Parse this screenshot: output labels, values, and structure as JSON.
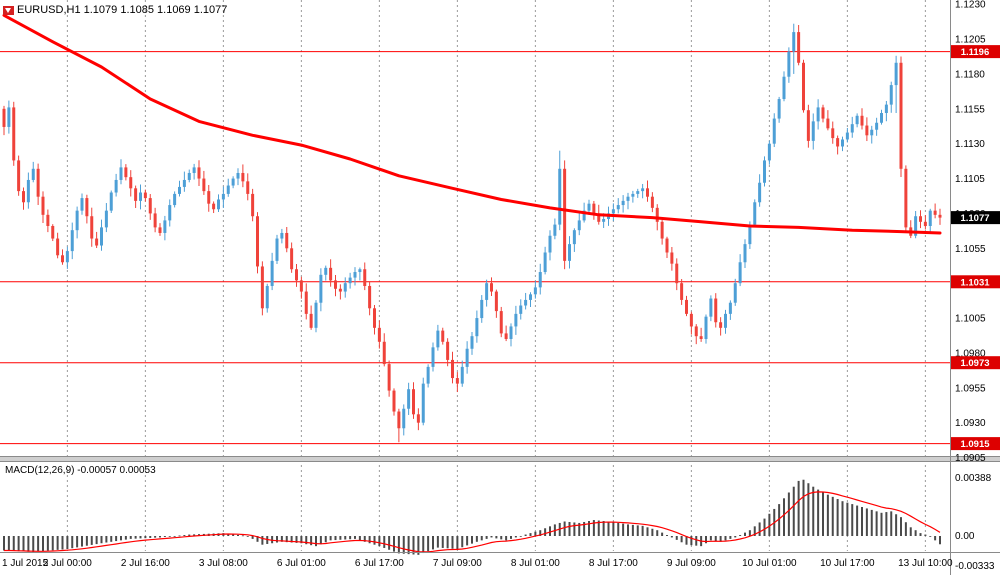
{
  "header": {
    "symbol_line": "EURUSD,H1 1.1079 1.1085 1.1069 1.1077"
  },
  "macd_panel": {
    "label": "MACD(12,26,9) -0.00057 0.00053",
    "axis_labels": [
      "0.00388",
      "0.00",
      "-0.00333"
    ]
  },
  "price_axis_labels": [
    "1.1230",
    "1.1205",
    "1.1180",
    "1.1155",
    "1.1130",
    "1.1105",
    "1.1080",
    "1.1055",
    "1.1030",
    "1.1005",
    "1.0980",
    "1.0955",
    "1.0930",
    "1.0905"
  ],
  "time_axis": [
    {
      "label": "1 Jul 2015",
      "i": 1,
      "grid": false
    },
    {
      "label": "2 Jul 00:00",
      "i": 13,
      "grid": true
    },
    {
      "label": "2 Jul 16:00",
      "i": 29,
      "grid": true
    },
    {
      "label": "3 Jul 08:00",
      "i": 45,
      "grid": true
    },
    {
      "label": "6 Jul 01:00",
      "i": 61,
      "grid": true
    },
    {
      "label": "6 Jul 17:00",
      "i": 77,
      "grid": true
    },
    {
      "label": "7 Jul 09:00",
      "i": 93,
      "grid": true
    },
    {
      "label": "8 Jul 01:00",
      "i": 109,
      "grid": true
    },
    {
      "label": "8 Jul 17:00",
      "i": 125,
      "grid": true
    },
    {
      "label": "9 Jul 09:00",
      "i": 141,
      "grid": true
    },
    {
      "label": "10 Jul 01:00",
      "i": 157,
      "grid": true
    },
    {
      "label": "10 Jul 17:00",
      "i": 173,
      "grid": true
    },
    {
      "label": "13 Jul 10:00",
      "i": 189,
      "grid": true
    }
  ],
  "levels": {
    "horizontal_lines": [
      {
        "label": "1.1196",
        "value": 1.1196
      },
      {
        "label": "1.1031",
        "value": 1.1031
      },
      {
        "label": "1.0973",
        "value": 1.0973
      },
      {
        "label": "1.0915",
        "value": 1.0915
      }
    ],
    "current_price": {
      "label": "1.1077",
      "value": 1.1077
    }
  },
  "colors": {
    "background": "#ffffff",
    "bull_candle": "#4d9fd6",
    "bear_candle": "#ef423a",
    "ma_line": "#ff0000",
    "hline": "#ff0000",
    "hline_tag_bg": "#dd0000",
    "current_tag_bg": "#000000",
    "tag_text": "#ffffff",
    "grid": "#9b9b9b",
    "macd_histogram": "#4a4a4a",
    "macd_signal": "#ff0000",
    "axis_text": "#000000",
    "divider": "#cfcfcf",
    "frame": "#8a8a8a"
  },
  "chart_data": {
    "type": "candlestick",
    "symbol": "EURUSD",
    "timeframe": "H1",
    "title": "EURUSD,H1",
    "last_ohlc": {
      "open": 1.1079,
      "high": 1.1085,
      "low": 1.1069,
      "close": 1.1077
    },
    "ylim": [
      1.0903,
      1.1233
    ],
    "price_gridstep": 0.0025,
    "closes": [
      1.1142,
      1.1156,
      1.1118,
      1.1096,
      1.1088,
      1.1104,
      1.1112,
      1.1092,
      1.1079,
      1.1071,
      1.1062,
      1.105,
      1.1045,
      1.1053,
      1.1068,
      1.1082,
      1.1091,
      1.1078,
      1.1062,
      1.1057,
      1.107,
      1.1082,
      1.1095,
      1.1104,
      1.1113,
      1.1106,
      1.1098,
      1.1089,
      1.1095,
      1.1091,
      1.108,
      1.107,
      1.1066,
      1.1075,
      1.1086,
      1.1094,
      1.1099,
      1.1104,
      1.1109,
      1.1113,
      1.1105,
      1.1096,
      1.1087,
      1.1083,
      1.109,
      1.1094,
      1.11,
      1.1105,
      1.1109,
      1.1103,
      1.1094,
      1.1078,
      1.1042,
      1.1012,
      1.1028,
      1.1046,
      1.1062,
      1.1066,
      1.1055,
      1.104,
      1.1032,
      1.1024,
      1.1008,
      1.0998,
      1.1016,
      1.1036,
      1.1041,
      1.1032,
      1.1026,
      1.1024,
      1.103,
      1.1034,
      1.1038,
      1.104,
      1.1028,
      1.1012,
      1.0998,
      1.0988,
      1.0972,
      1.0953,
      1.0938,
      1.0926,
      1.094,
      1.0954,
      1.0936,
      1.093,
      1.0958,
      1.097,
      1.0984,
      1.0996,
      1.0988,
      1.0975,
      1.0962,
      1.0958,
      1.097,
      1.0983,
      1.0992,
      1.1005,
      1.1018,
      1.103,
      1.1024,
      1.101,
      1.0994,
      1.099,
      1.0999,
      1.1008,
      1.1014,
      1.1018,
      1.1022,
      1.1027,
      1.1038,
      1.1052,
      1.1064,
      1.1072,
      1.1112,
      1.1046,
      1.1058,
      1.1068,
      1.1075,
      1.1082,
      1.1087,
      1.108,
      1.1074,
      1.1076,
      1.108,
      1.1083,
      1.1086,
      1.1089,
      1.1092,
      1.1094,
      1.1096,
      1.1098,
      1.1092,
      1.1084,
      1.1074,
      1.1062,
      1.1052,
      1.1044,
      1.103,
      1.1018,
      1.1008,
      1.0999,
      1.0992,
      1.099,
      1.1006,
      1.1019,
      1.1002,
      1.0998,
      1.1008,
      1.1016,
      1.103,
      1.1045,
      1.1058,
      1.1072,
      1.1088,
      1.1102,
      1.1118,
      1.113,
      1.1148,
      1.1162,
      1.1178,
      1.1196,
      1.121,
      1.1188,
      1.1154,
      1.1132,
      1.1146,
      1.1156,
      1.1148,
      1.1141,
      1.1134,
      1.1128,
      1.1133,
      1.1138,
      1.1144,
      1.115,
      1.1143,
      1.1136,
      1.114,
      1.1145,
      1.1152,
      1.1158,
      1.1172,
      1.1188,
      1.1112,
      1.107,
      1.1064,
      1.1078,
      1.1074,
      1.1071,
      1.1082,
      1.1079,
      1.1077
    ],
    "wick_pips": 0.0005,
    "wick_overrides": {
      "81": [
        1.094,
        1.0916
      ],
      "114": [
        1.1125,
        1.1068
      ],
      "162": [
        1.1216,
        1.118
      ],
      "183": [
        1.1193,
        1.1152
      ]
    },
    "ma_points": [
      [
        0,
        1.1222
      ],
      [
        10,
        1.1203
      ],
      [
        20,
        1.1185
      ],
      [
        30,
        1.1162
      ],
      [
        40,
        1.1146
      ],
      [
        51,
        1.1136
      ],
      [
        61,
        1.1129
      ],
      [
        71,
        1.1119
      ],
      [
        81,
        1.1107
      ],
      [
        92,
        1.1098
      ],
      [
        102,
        1.109
      ],
      [
        112,
        1.1084
      ],
      [
        122,
        1.1079
      ],
      [
        133,
        1.1077
      ],
      [
        143,
        1.1074
      ],
      [
        153,
        1.1071
      ],
      [
        163,
        1.107
      ],
      [
        174,
        1.1068
      ],
      [
        184,
        1.1067
      ],
      [
        192,
        1.1066
      ]
    ],
    "macd": {
      "current_macd": -0.00057,
      "current_signal": 0.00053,
      "ylim": [
        -0.00333,
        0.00388
      ],
      "anchors": [
        [
          0,
          -0.001
        ],
        [
          6,
          -0.0011
        ],
        [
          13,
          -0.0009
        ],
        [
          20,
          -0.0005
        ],
        [
          26,
          -0.0002
        ],
        [
          32,
          -0.0001
        ],
        [
          38,
          0.0001
        ],
        [
          45,
          0.0002
        ],
        [
          50,
          0.0
        ],
        [
          53,
          -0.0006
        ],
        [
          57,
          -0.0004
        ],
        [
          61,
          -0.0005
        ],
        [
          64,
          -0.0007
        ],
        [
          67,
          -0.0003
        ],
        [
          72,
          -0.0002
        ],
        [
          77,
          -0.0007
        ],
        [
          81,
          -0.0012
        ],
        [
          85,
          -0.0013
        ],
        [
          89,
          -0.0008
        ],
        [
          93,
          -0.0009
        ],
        [
          97,
          -0.0004
        ],
        [
          100,
          -0.0001
        ],
        [
          103,
          -0.0003
        ],
        [
          107,
          0.0001
        ],
        [
          110,
          0.0004
        ],
        [
          113,
          0.0008
        ],
        [
          115,
          0.001
        ],
        [
          118,
          0.0009
        ],
        [
          121,
          0.0011
        ],
        [
          124,
          0.001
        ],
        [
          128,
          0.0008
        ],
        [
          131,
          0.0007
        ],
        [
          134,
          0.0004
        ],
        [
          137,
          -0.0001
        ],
        [
          140,
          -0.0006
        ],
        [
          143,
          -0.0007
        ],
        [
          145,
          -0.0003
        ],
        [
          147,
          -0.0004
        ],
        [
          150,
          -0.0001
        ],
        [
          153,
          0.0004
        ],
        [
          156,
          0.0012
        ],
        [
          159,
          0.0022
        ],
        [
          161,
          0.003
        ],
        [
          163,
          0.0038
        ],
        [
          164,
          0.00388
        ],
        [
          166,
          0.0034
        ],
        [
          168,
          0.003
        ],
        [
          170,
          0.0027
        ],
        [
          172,
          0.0024
        ],
        [
          174,
          0.0022
        ],
        [
          176,
          0.002
        ],
        [
          178,
          0.0018
        ],
        [
          180,
          0.0016
        ],
        [
          182,
          0.0017
        ],
        [
          184,
          0.0013
        ],
        [
          186,
          0.0006
        ],
        [
          188,
          0.0002
        ],
        [
          190,
          0.0
        ],
        [
          191,
          -0.0003
        ],
        [
          192,
          -0.00057
        ]
      ]
    }
  }
}
